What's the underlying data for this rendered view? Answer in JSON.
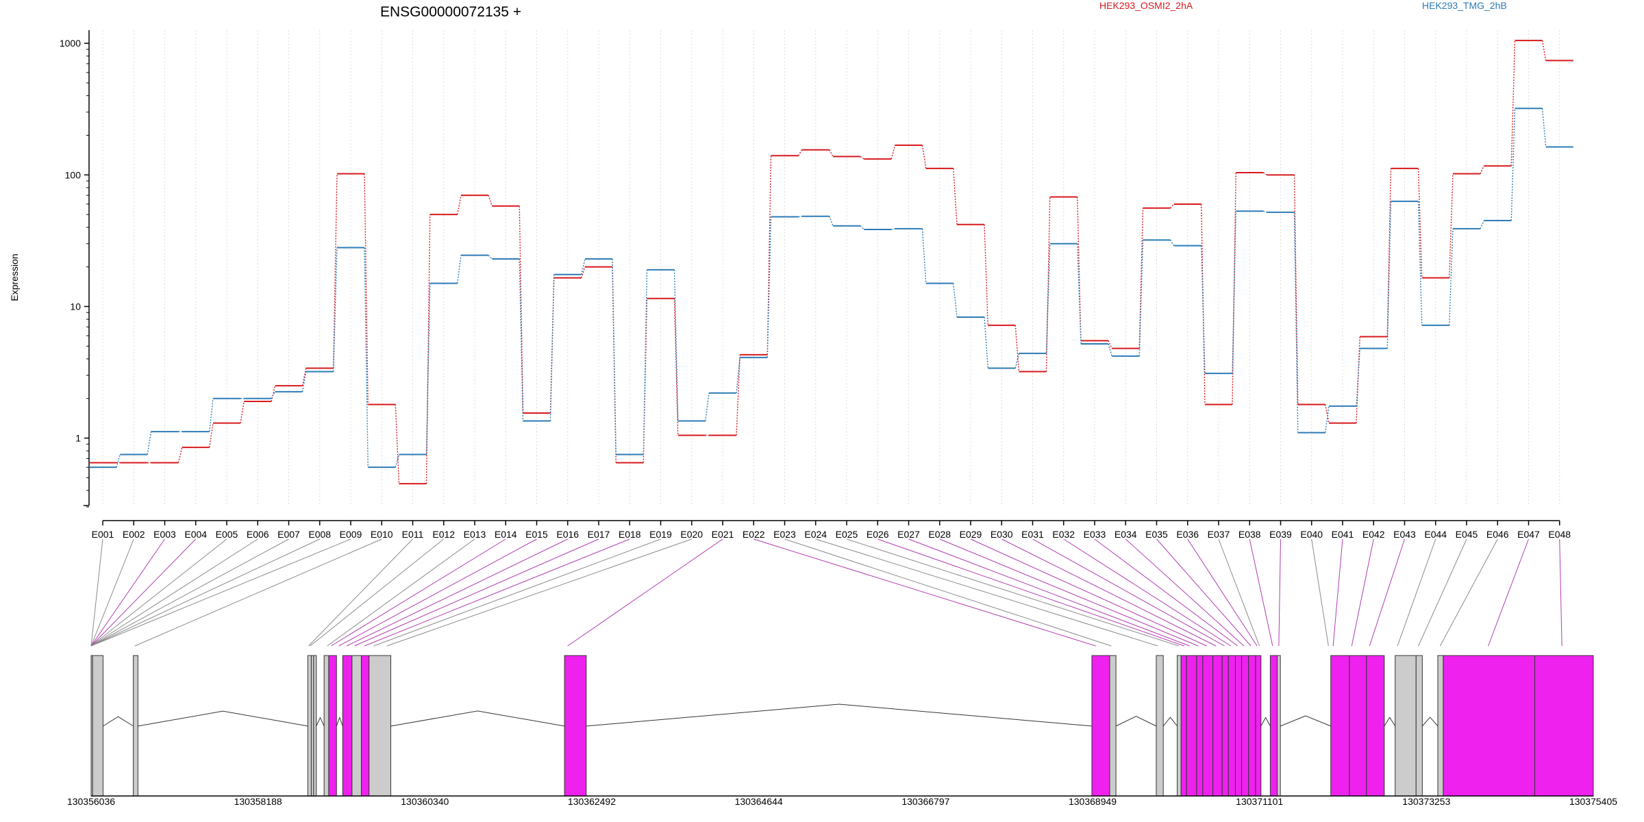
{
  "chart_data": {
    "type": "line",
    "title": "ENSG00000072135 +",
    "ylabel": "Expression",
    "y_scale": "log",
    "ylim": [
      0.3,
      1200
    ],
    "y_ticks": [
      1,
      10,
      100,
      1000
    ],
    "y_tick_labels": [
      "1",
      "10",
      "100",
      "1000"
    ],
    "grid": "vertical dotted lines at each exon",
    "legend_placement": "top, inline",
    "categories": [
      "E001",
      "E002",
      "E003",
      "E004",
      "E005",
      "E006",
      "E007",
      "E008",
      "E009",
      "E010",
      "E011",
      "E012",
      "E013",
      "E014",
      "E015",
      "E016",
      "E017",
      "E018",
      "E019",
      "E020",
      "E021",
      "E022",
      "E023",
      "E024",
      "E025",
      "E026",
      "E027",
      "E028",
      "E029",
      "E030",
      "E031",
      "E032",
      "E033",
      "E034",
      "E035",
      "E036",
      "E037",
      "E038",
      "E039",
      "E040",
      "E041",
      "E042",
      "E043",
      "E044",
      "E045",
      "E046",
      "E047",
      "E048"
    ],
    "series": [
      {
        "name": "HEK293_OSMI2_2hA",
        "color": "#d7191c",
        "values": [
          0.65,
          0.65,
          0.65,
          0.85,
          1.3,
          1.9,
          2.5,
          3.4,
          102,
          1.8,
          0.45,
          50,
          70,
          58,
          1.55,
          16.5,
          20,
          0.65,
          11.5,
          1.05,
          1.05,
          4.3,
          140,
          155,
          138,
          132,
          168,
          112,
          42,
          7.2,
          3.2,
          68,
          5.5,
          4.8,
          56,
          60,
          1.8,
          104,
          100,
          1.8,
          1.3,
          5.9,
          112,
          16.5,
          102,
          117,
          1050,
          740
        ]
      },
      {
        "name": "HEK293_TMG_2hB",
        "color": "#2c7bb6",
        "values": [
          0.6,
          0.75,
          1.12,
          1.12,
          2.0,
          2.0,
          2.25,
          3.2,
          28,
          0.6,
          0.75,
          15,
          24.5,
          23,
          1.35,
          17.5,
          23,
          0.75,
          19,
          1.35,
          2.2,
          4.1,
          48,
          48.5,
          41,
          38.5,
          39,
          15,
          8.3,
          3.4,
          4.4,
          30,
          5.2,
          4.2,
          32,
          29,
          3.1,
          53,
          52,
          1.1,
          1.75,
          4.8,
          63,
          7.2,
          39,
          45,
          320,
          163
        ]
      }
    ],
    "genomic_axis": {
      "tick_labels": [
        "130356036",
        "130358188",
        "130360340",
        "130362492",
        "130364644",
        "130366797",
        "130368949",
        "130371101",
        "130373253",
        "130375405"
      ],
      "range": [
        130356036,
        130375405
      ]
    },
    "exon_blocks": {
      "legend": "grey = exonic bin not significant, magenta = exonic bin highlighted",
      "fill_highlight": "#ee21ee",
      "fill_normal": "#cccccc",
      "blocks": [
        {
          "start": 130356036,
          "end": 130356055,
          "color": "normal"
        },
        {
          "start": 130356055,
          "end": 130356190,
          "color": "normal"
        },
        {
          "start": 130356580,
          "end": 130356640,
          "color": "normal"
        },
        {
          "start": 130358830,
          "end": 130358875,
          "color": "normal"
        },
        {
          "start": 130358875,
          "end": 130358905,
          "color": "normal"
        },
        {
          "start": 130358905,
          "end": 130358940,
          "color": "normal"
        },
        {
          "start": 130359040,
          "end": 130359100,
          "color": "normal"
        },
        {
          "start": 130359100,
          "end": 130359200,
          "color": "highlight"
        },
        {
          "start": 130359280,
          "end": 130359400,
          "color": "highlight"
        },
        {
          "start": 130359400,
          "end": 130359520,
          "color": "normal"
        },
        {
          "start": 130359520,
          "end": 130359620,
          "color": "highlight"
        },
        {
          "start": 130359620,
          "end": 130359900,
          "color": "normal"
        },
        {
          "start": 130362140,
          "end": 130362420,
          "color": "highlight"
        },
        {
          "start": 130368940,
          "end": 130369170,
          "color": "highlight"
        },
        {
          "start": 130369170,
          "end": 130369250,
          "color": "normal"
        },
        {
          "start": 130369770,
          "end": 130369860,
          "color": "normal"
        },
        {
          "start": 130370040,
          "end": 130370090,
          "color": "normal"
        },
        {
          "start": 130370090,
          "end": 130370160,
          "color": "highlight"
        },
        {
          "start": 130370160,
          "end": 130370290,
          "color": "highlight"
        },
        {
          "start": 130370290,
          "end": 130370370,
          "color": "highlight"
        },
        {
          "start": 130370370,
          "end": 130370500,
          "color": "highlight"
        },
        {
          "start": 130370500,
          "end": 130370620,
          "color": "highlight"
        },
        {
          "start": 130370620,
          "end": 130370700,
          "color": "highlight"
        },
        {
          "start": 130370700,
          "end": 130370790,
          "color": "highlight"
        },
        {
          "start": 130370790,
          "end": 130370870,
          "color": "highlight"
        },
        {
          "start": 130370870,
          "end": 130370960,
          "color": "highlight"
        },
        {
          "start": 130370960,
          "end": 130371050,
          "color": "highlight"
        },
        {
          "start": 130371050,
          "end": 130371120,
          "color": "highlight"
        },
        {
          "start": 130371240,
          "end": 130371330,
          "color": "highlight"
        },
        {
          "start": 130371330,
          "end": 130371370,
          "color": "normal"
        },
        {
          "start": 130372020,
          "end": 130372260,
          "color": "highlight"
        },
        {
          "start": 130372260,
          "end": 130372480,
          "color": "highlight"
        },
        {
          "start": 130372480,
          "end": 130372710,
          "color": "highlight"
        },
        {
          "start": 130372850,
          "end": 130373120,
          "color": "normal"
        },
        {
          "start": 130373120,
          "end": 130373200,
          "color": "normal"
        },
        {
          "start": 130373400,
          "end": 130373470,
          "color": "normal"
        },
        {
          "start": 130373470,
          "end": 130374650,
          "color": "highlight"
        },
        {
          "start": 130374650,
          "end": 130375405,
          "color": "highlight"
        }
      ],
      "connectors": [
        {
          "exon": "E001",
          "target": 130356036,
          "color": "normal"
        },
        {
          "exon": "E002",
          "target": 130356036,
          "color": "normal"
        },
        {
          "exon": "E003",
          "target": 130356036,
          "color": "highlight"
        },
        {
          "exon": "E004",
          "target": 130356036,
          "color": "highlight"
        },
        {
          "exon": "E005",
          "target": 130356036,
          "color": "normal"
        },
        {
          "exon": "E006",
          "target": 130356036,
          "color": "normal"
        },
        {
          "exon": "E007",
          "target": 130356036,
          "color": "normal"
        },
        {
          "exon": "E008",
          "target": 130356036,
          "color": "normal"
        },
        {
          "exon": "E009",
          "target": 130356036,
          "color": "normal"
        },
        {
          "exon": "E010",
          "target": 130356600,
          "color": "normal"
        },
        {
          "exon": "E011",
          "target": 130358840,
          "color": "normal"
        },
        {
          "exon": "E012",
          "target": 130358860,
          "color": "normal"
        },
        {
          "exon": "E013",
          "target": 130359080,
          "color": "normal"
        },
        {
          "exon": "E014",
          "target": 130359130,
          "color": "highlight"
        },
        {
          "exon": "E015",
          "target": 130359230,
          "color": "highlight"
        },
        {
          "exon": "E016",
          "target": 130359330,
          "color": "highlight"
        },
        {
          "exon": "E017",
          "target": 130359430,
          "color": "highlight"
        },
        {
          "exon": "E018",
          "target": 130359560,
          "color": "highlight"
        },
        {
          "exon": "E019",
          "target": 130359680,
          "color": "normal"
        },
        {
          "exon": "E020",
          "target": 130359850,
          "color": "normal"
        },
        {
          "exon": "E021",
          "target": 130362180,
          "color": "highlight"
        },
        {
          "exon": "E022",
          "target": 130368990,
          "color": "highlight"
        },
        {
          "exon": "E023",
          "target": 130369190,
          "color": "normal"
        },
        {
          "exon": "E024",
          "target": 130369790,
          "color": "normal"
        },
        {
          "exon": "E025",
          "target": 130370060,
          "color": "normal"
        },
        {
          "exon": "E026",
          "target": 130370130,
          "color": "highlight"
        },
        {
          "exon": "E027",
          "target": 130370200,
          "color": "highlight"
        },
        {
          "exon": "E028",
          "target": 130370310,
          "color": "highlight"
        },
        {
          "exon": "E029",
          "target": 130370420,
          "color": "highlight"
        },
        {
          "exon": "E030",
          "target": 130370540,
          "color": "highlight"
        },
        {
          "exon": "E031",
          "target": 130370650,
          "color": "highlight"
        },
        {
          "exon": "E032",
          "target": 130370730,
          "color": "highlight"
        },
        {
          "exon": "E033",
          "target": 130370820,
          "color": "highlight"
        },
        {
          "exon": "E034",
          "target": 130370900,
          "color": "highlight"
        },
        {
          "exon": "E035",
          "target": 130370990,
          "color": "highlight"
        },
        {
          "exon": "E036",
          "target": 130371070,
          "color": "highlight"
        },
        {
          "exon": "E037",
          "target": 130371100,
          "color": "normal"
        },
        {
          "exon": "E038",
          "target": 130371270,
          "color": "highlight"
        },
        {
          "exon": "E039",
          "target": 130371350,
          "color": "highlight"
        },
        {
          "exon": "E040",
          "target": 130371990,
          "color": "normal"
        },
        {
          "exon": "E041",
          "target": 130372050,
          "color": "highlight"
        },
        {
          "exon": "E042",
          "target": 130372290,
          "color": "highlight"
        },
        {
          "exon": "E043",
          "target": 130372520,
          "color": "highlight"
        },
        {
          "exon": "E044",
          "target": 130372880,
          "color": "normal"
        },
        {
          "exon": "E045",
          "target": 130373150,
          "color": "normal"
        },
        {
          "exon": "E046",
          "target": 130373430,
          "color": "normal"
        },
        {
          "exon": "E047",
          "target": 130374050,
          "color": "highlight"
        },
        {
          "exon": "E048",
          "target": 130375000,
          "color": "highlight"
        }
      ]
    }
  }
}
